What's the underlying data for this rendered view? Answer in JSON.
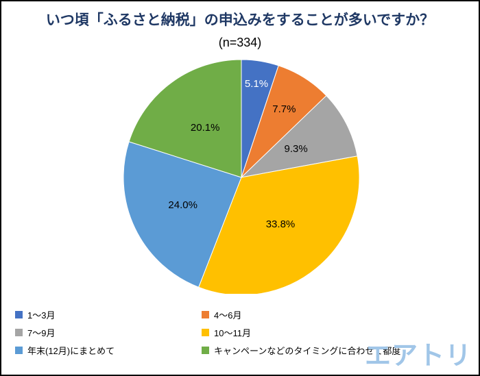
{
  "chart_data": {
    "type": "pie",
    "title": "いつ頃「ふるさと納税」の申込みをすることが多いですか？",
    "sample_label": "(n=334)",
    "categories": [
      "1〜3月",
      "4〜6月",
      "7〜9月",
      "10〜11月",
      "年末(12月)にまとめて",
      "キャンペーンなどのタイミングに合わせて都度"
    ],
    "values": [
      5.1,
      7.7,
      9.3,
      33.8,
      24.0,
      20.1
    ],
    "labels": [
      "5.1%",
      "7.7%",
      "9.3%",
      "33.8%",
      "24.0%",
      "20.1%"
    ],
    "colors": [
      "#4472C4",
      "#ED7D31",
      "#A5A5A5",
      "#FFC000",
      "#5B9BD5",
      "#70AD47"
    ],
    "label_text_colors": [
      "#FFFFFF",
      "#000000",
      "#000000",
      "#000000",
      "#000000",
      "#000000"
    ],
    "start_angle_deg": 0,
    "direction": "clockwise",
    "legend_position": "bottom"
  },
  "branding": {
    "logo_text": "エアトリ",
    "logo_color": "#A1C6E8"
  },
  "style": {
    "title_color": "#1F3864",
    "background": "#FFFFFF",
    "border_color": "#000000"
  }
}
